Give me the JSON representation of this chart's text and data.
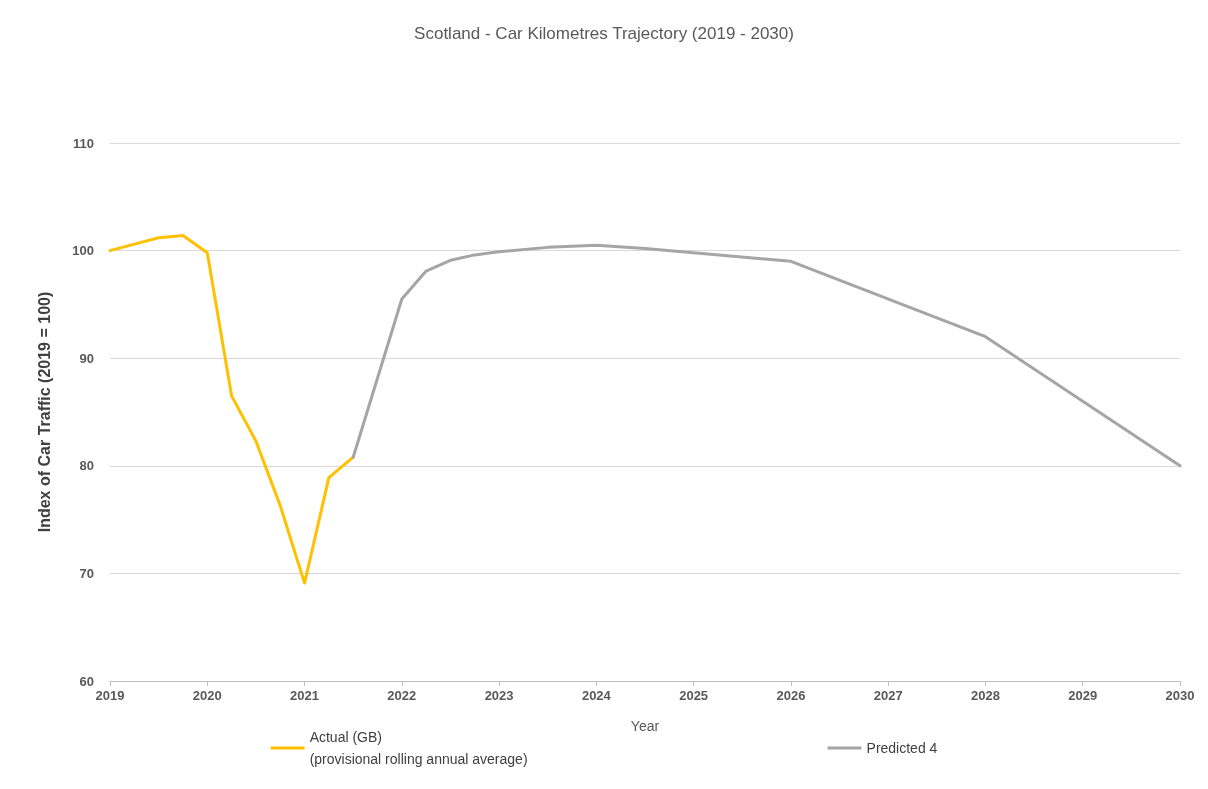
{
  "chart_data": {
    "type": "line",
    "title": "Scotland - Car Kilometres Trajectory (2019 - 2030)",
    "xlabel": "Year",
    "ylabel": "Index of Car Traffic (2019 = 100)",
    "series": [
      {
        "name": "Actual (GB)\n(provisional rolling annual average)",
        "color": "#ffc000",
        "x": [
          2019,
          2019.25,
          2019.5,
          2019.75,
          2020,
          2020.25,
          2020.5,
          2020.75,
          2021,
          2021.25,
          2021.5
        ],
        "values": [
          100.0,
          100.6,
          101.2,
          101.4,
          99.8,
          86.5,
          82.3,
          76.3,
          69.1,
          78.9,
          80.8
        ]
      },
      {
        "name": "Predicted 4",
        "color": "#a5a5a5",
        "x": [
          2021.5,
          2022,
          2022.25,
          2022.5,
          2022.75,
          2023,
          2023.5,
          2024,
          2024.5,
          2026,
          2028,
          2030
        ],
        "values": [
          80.8,
          95.5,
          98.1,
          99.1,
          99.6,
          99.9,
          100.3,
          100.5,
          100.2,
          99.0,
          92.0,
          80.0
        ]
      }
    ],
    "xlim": [
      2019,
      2030
    ],
    "xticks": [
      2019,
      2020,
      2021,
      2022,
      2023,
      2024,
      2025,
      2026,
      2027,
      2028,
      2029,
      2030
    ],
    "ylim": [
      60,
      110
    ],
    "yticks": [
      60,
      70,
      80,
      90,
      100,
      110
    ],
    "grid": "y",
    "legend": "bottom",
    "marker": "none",
    "line_style": "solid"
  }
}
